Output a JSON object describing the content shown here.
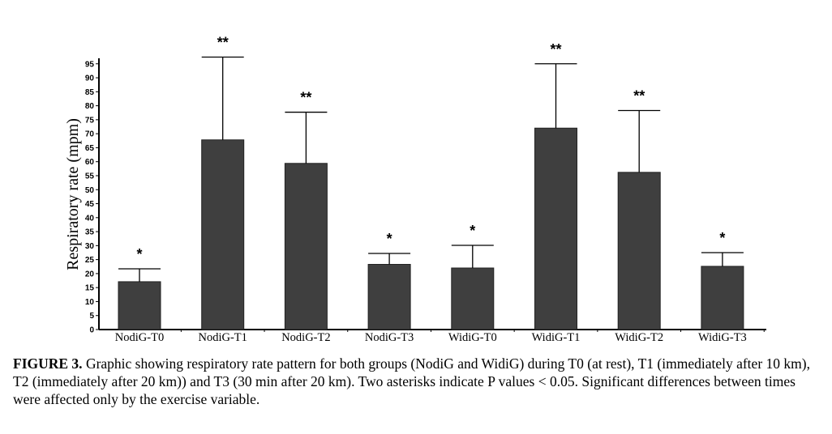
{
  "chart_data": {
    "type": "bar",
    "title": "",
    "xlabel": "",
    "ylabel": "Respiratory rate (mpm)",
    "ylim": [
      0,
      95
    ],
    "yticks": [
      0,
      5,
      10,
      15,
      20,
      25,
      30,
      35,
      40,
      45,
      50,
      55,
      60,
      65,
      70,
      75,
      80,
      85,
      90,
      95
    ],
    "categories": [
      "NodiG-T0",
      "NodiG-T1",
      "NodiG-T2",
      "NodiG-T3",
      "WidiG-T0",
      "WidiG-T1",
      "WidiG-T2",
      "WidiG-T3"
    ],
    "values": [
      17.1,
      67.8,
      59.4,
      23.3,
      22.0,
      72.0,
      56.2,
      22.6
    ],
    "error_upper": [
      21.7,
      97.4,
      77.7,
      27.2,
      30.1,
      95.0,
      78.3,
      27.5
    ],
    "annotations": [
      "*",
      "**",
      "**",
      "*",
      "*",
      "**",
      "**",
      "*"
    ],
    "bar_color": "#3f3f3f",
    "grid": false
  },
  "caption": {
    "label": "FIGURE 3.",
    "text": " Graphic showing respiratory rate pattern for both groups (NodiG and WidiG) during T0 (at rest), T1 (immediately after 10 km), T2 (immediately after 20 km)) and T3 (30 min after 20 km). Two asterisks indicate P values < 0.05. Significant differences between times were affected only by the exercise variable."
  }
}
